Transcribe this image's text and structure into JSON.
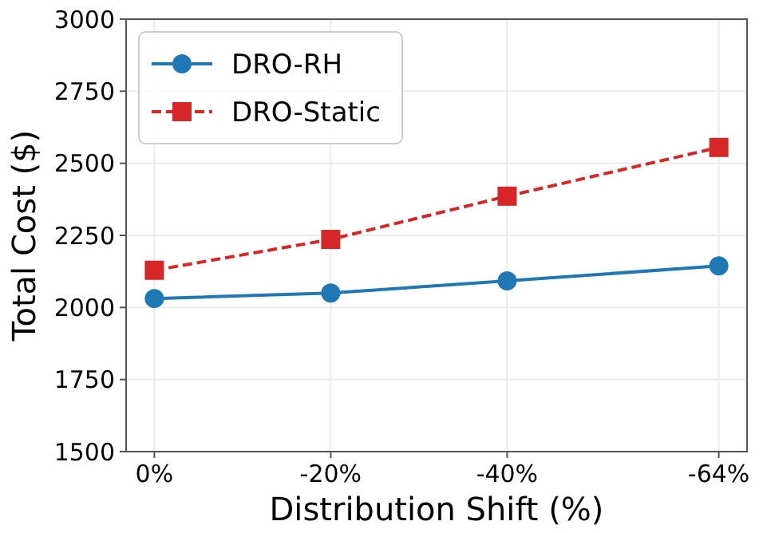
{
  "chart_data": {
    "type": "line",
    "xlabel": "Distribution Shift (%)",
    "ylabel": "Total Cost ($)",
    "x": [
      0,
      -20,
      -40,
      -64
    ],
    "series": [
      {
        "name": "DRO-RH",
        "color": "#1f77b4",
        "values": [
          2031,
          2050,
          2092,
          2144
        ],
        "marker": "circle",
        "line_style": "solid"
      },
      {
        "name": "DRO-Static",
        "color": "#d62728",
        "values": [
          2129,
          2236,
          2386,
          2555
        ],
        "marker": "square",
        "line_style": "dashed"
      }
    ],
    "xlim": [
      3.2,
      -67.2
    ],
    "xticks": [
      {
        "value": 0,
        "label": "0%"
      },
      {
        "value": -20,
        "label": "-20%"
      },
      {
        "value": -40,
        "label": "-40%"
      },
      {
        "value": -64,
        "label": "-64%"
      }
    ],
    "ylim": [
      1500,
      3000
    ],
    "yticks": [
      1500,
      1750,
      2000,
      2250,
      2500,
      2750,
      3000
    ],
    "grid": true,
    "legend": "top left"
  }
}
